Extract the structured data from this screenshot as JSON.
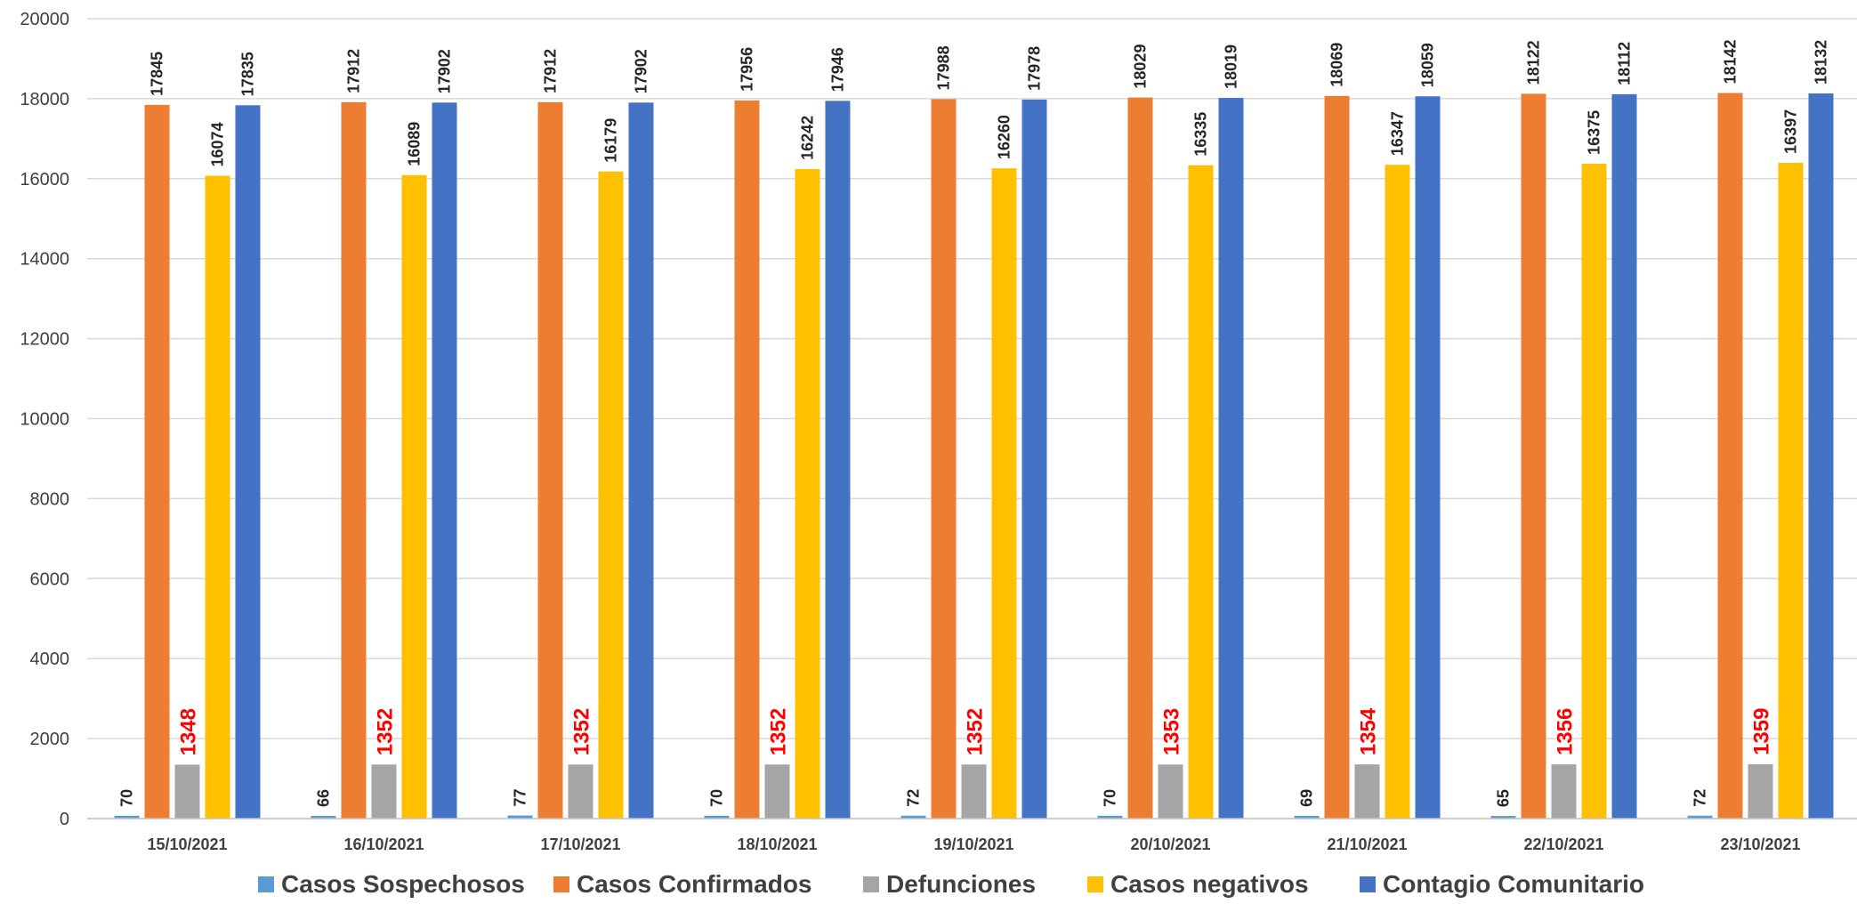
{
  "chart_data": {
    "type": "bar",
    "categories": [
      "15/10/2021",
      "16/10/2021",
      "17/10/2021",
      "18/10/2021",
      "19/10/2021",
      "20/10/2021",
      "21/10/2021",
      "22/10/2021",
      "23/10/2021"
    ],
    "series": [
      {
        "name": "Casos Sospechosos",
        "color": "#5b9bd5",
        "label_color": "#262626",
        "values": [
          70,
          66,
          77,
          70,
          72,
          70,
          69,
          65,
          72
        ]
      },
      {
        "name": "Casos Confirmados",
        "color": "#ed7d31",
        "label_color": "#262626",
        "values": [
          17845,
          17912,
          17912,
          17956,
          17988,
          18029,
          18069,
          18122,
          18142
        ]
      },
      {
        "name": "Defunciones",
        "color": "#a5a5a5",
        "label_color": "#ff0000",
        "values": [
          1348,
          1352,
          1352,
          1352,
          1352,
          1353,
          1354,
          1356,
          1359
        ]
      },
      {
        "name": "Casos negativos",
        "color": "#ffc000",
        "label_color": "#262626",
        "values": [
          16074,
          16089,
          16179,
          16242,
          16260,
          16335,
          16347,
          16375,
          16397
        ]
      },
      {
        "name": "Contagio Comunitario",
        "color": "#4472c4",
        "label_color": "#262626",
        "values": [
          17835,
          17902,
          17902,
          17946,
          17978,
          18019,
          18059,
          18112,
          18132
        ]
      }
    ],
    "ylim": [
      0,
      20000
    ],
    "yticks": [
      0,
      2000,
      4000,
      6000,
      8000,
      10000,
      12000,
      14000,
      16000,
      18000,
      20000
    ],
    "grid": true,
    "legend_position": "bottom",
    "data_labels": true
  }
}
